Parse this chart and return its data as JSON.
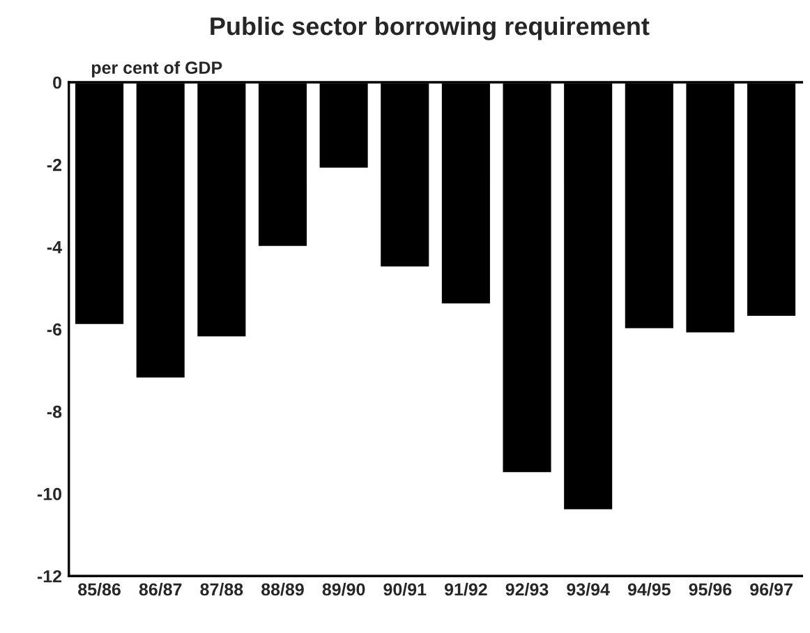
{
  "chart_data": {
    "type": "bar",
    "title": "Public sector borrowing requirement",
    "ylabel": "per cent of GDP",
    "categories": [
      "85/86",
      "86/87",
      "87/88",
      "88/89",
      "89/90",
      "90/91",
      "91/92",
      "92/93",
      "93/94",
      "94/95",
      "95/96",
      "96/97"
    ],
    "values": [
      -5.9,
      -7.2,
      -6.2,
      -4.0,
      -2.1,
      -4.5,
      -5.4,
      -9.5,
      -10.4,
      -6.0,
      -6.1,
      -5.7
    ],
    "color": "#000000",
    "ylim": [
      -12,
      0
    ],
    "yticks": [
      -12,
      -10,
      -8,
      -6,
      -4,
      -2,
      0
    ],
    "grid": false
  }
}
